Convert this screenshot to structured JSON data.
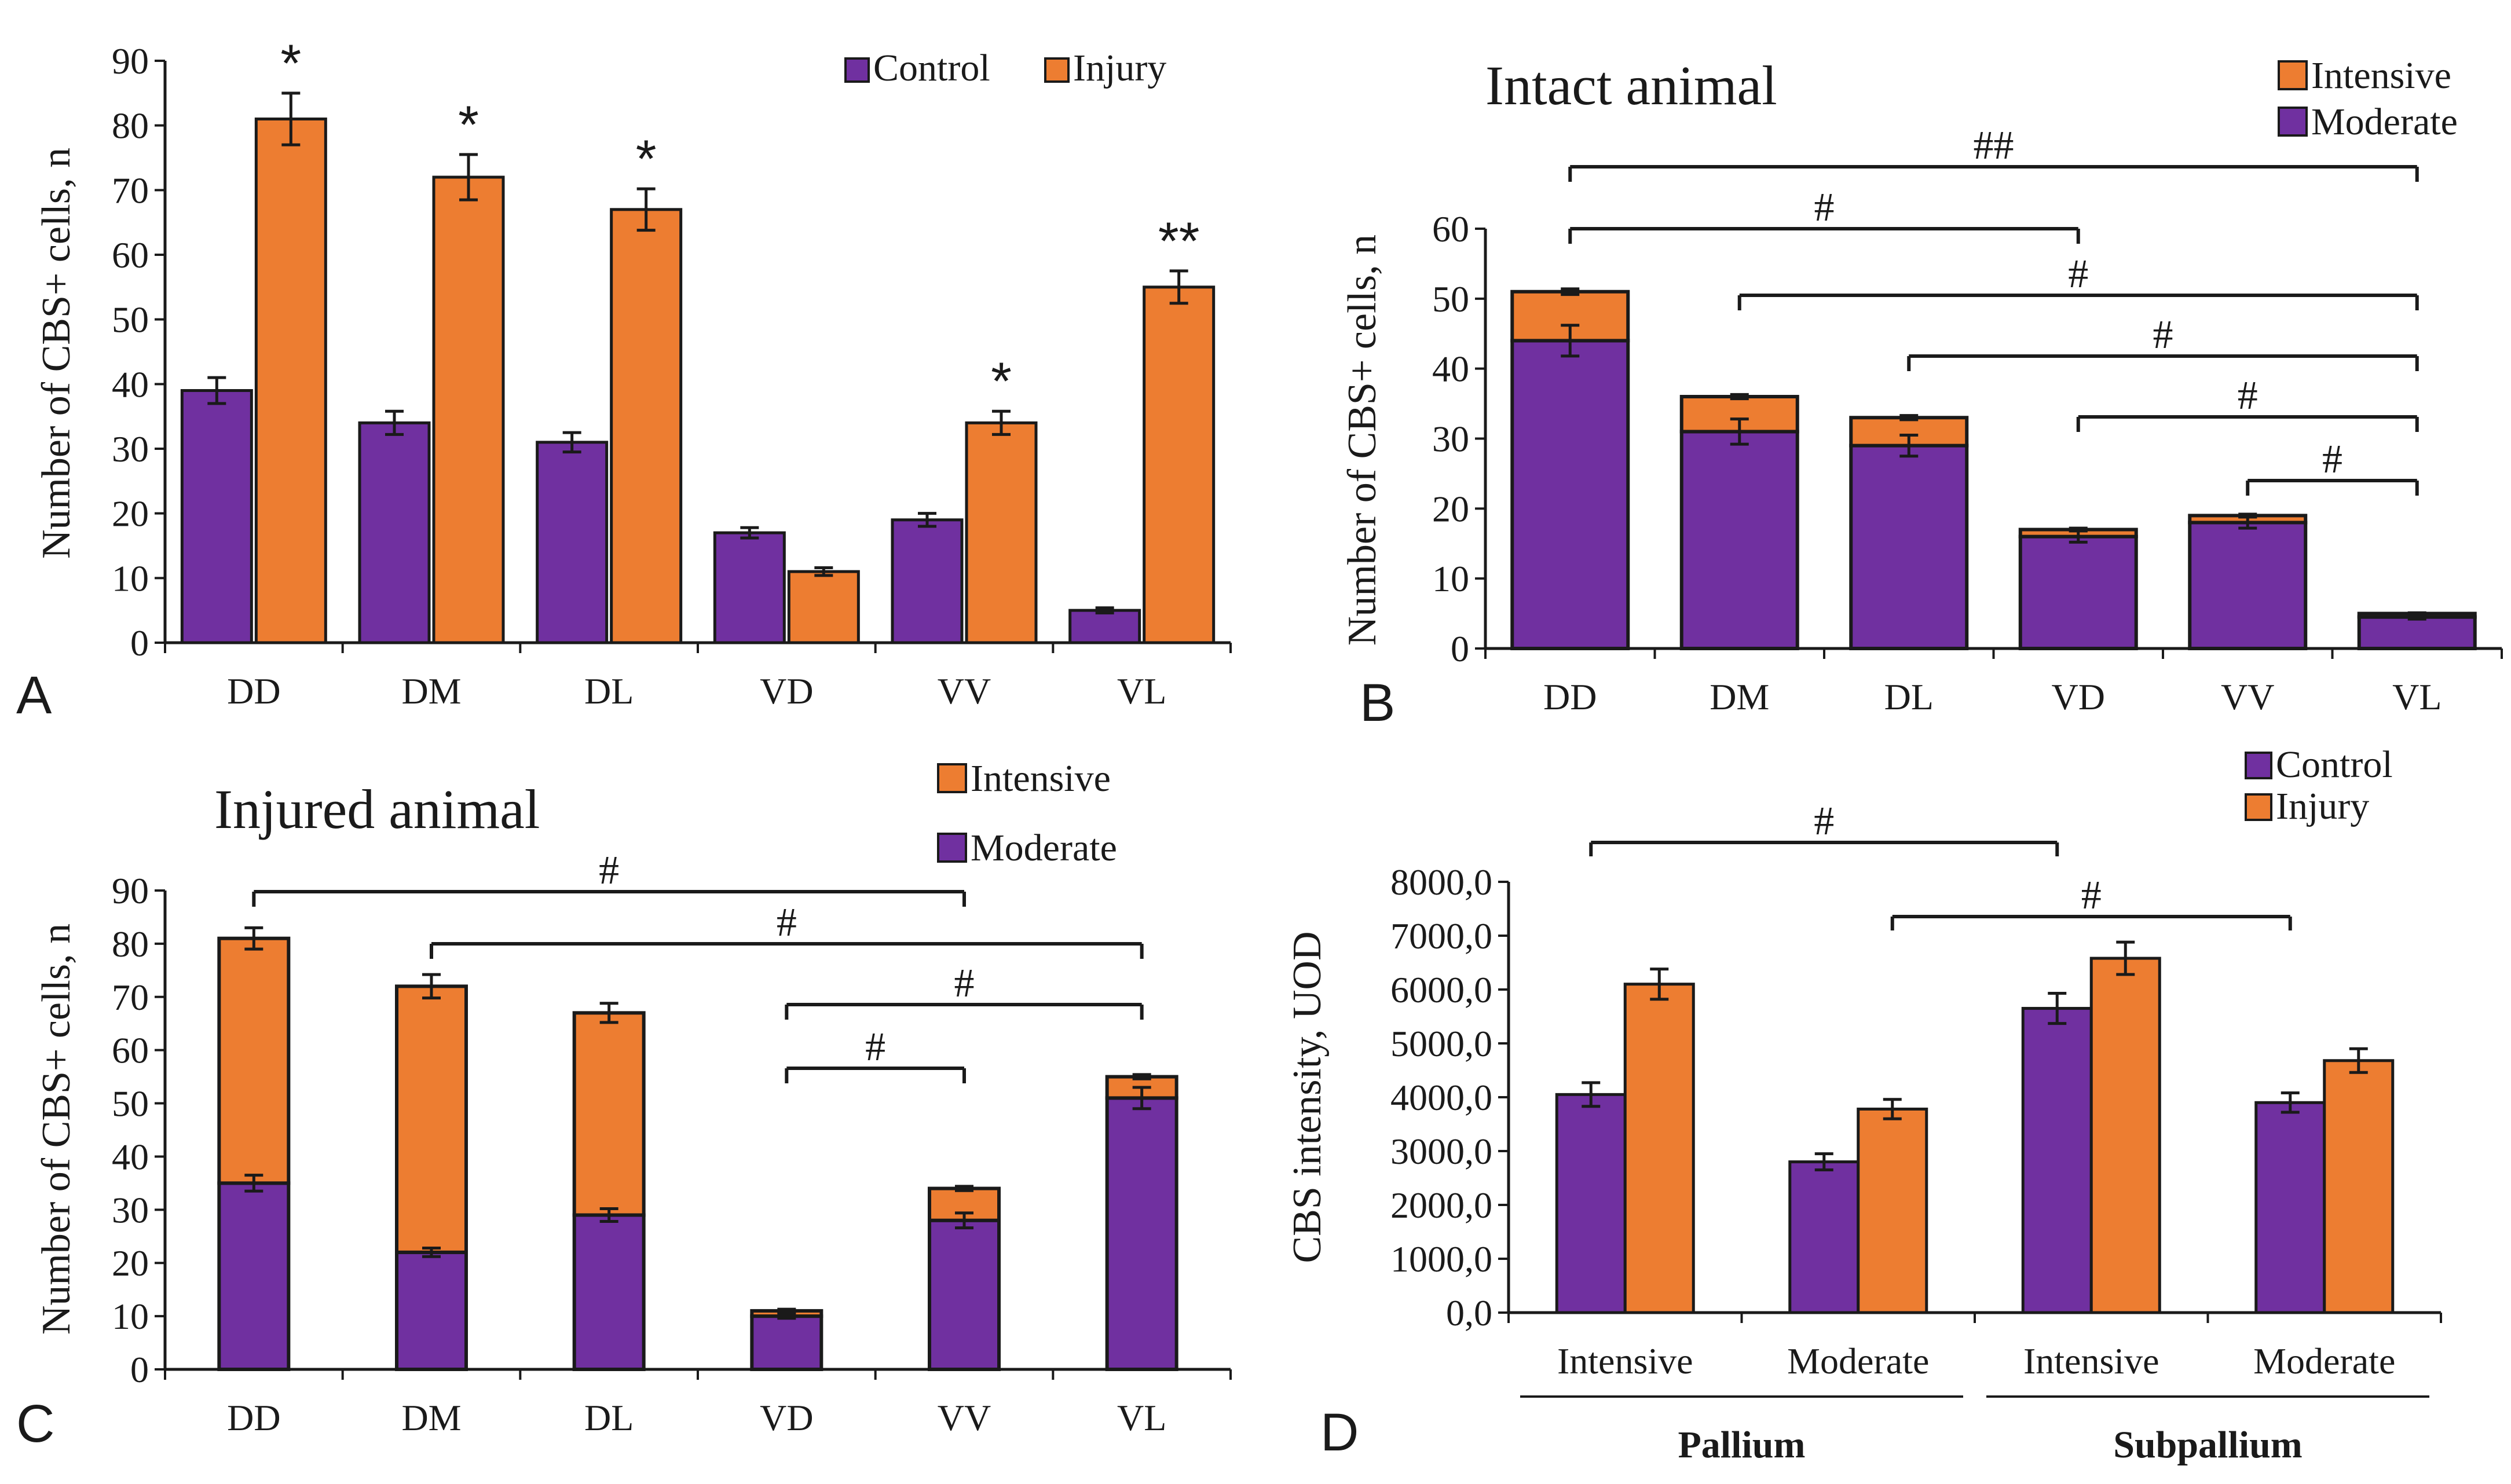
{
  "colors": {
    "purple": "#7030A0",
    "orange": "#ED7D31",
    "axis": "#1a1a1a"
  },
  "chart_data": [
    {
      "panel": "A",
      "type": "bar",
      "title": "",
      "ylabel": "Number of CBS+ cells, n",
      "xlabel": "",
      "ylim": [
        0,
        90
      ],
      "yticks": [
        "0",
        "10",
        "20",
        "30",
        "40",
        "50",
        "60",
        "70",
        "80",
        "90"
      ],
      "categories": [
        "DD",
        "DM",
        "DL",
        "VD",
        "VV",
        "VL"
      ],
      "legend": [
        "Control",
        "Injury"
      ],
      "series": [
        {
          "name": "Control",
          "color": "#7030A0",
          "values": [
            39,
            34,
            31,
            17,
            19,
            5
          ],
          "errors": [
            2,
            1.8,
            1.5,
            0.8,
            1,
            0.4
          ]
        },
        {
          "name": "Injury",
          "color": "#ED7D31",
          "values": [
            81,
            72,
            67,
            11,
            34,
            55
          ],
          "errors": [
            4,
            3.5,
            3.2,
            0.6,
            1.8,
            2.5
          ]
        }
      ],
      "annotations": [
        "*",
        "*",
        "*",
        "",
        "*",
        "**"
      ]
    },
    {
      "panel": "B",
      "type": "bar",
      "stacked": true,
      "title": "Intact animal",
      "ylabel": "Number of CBS+ cells, n",
      "ylim": [
        0,
        60
      ],
      "yticks": [
        "0",
        "10",
        "20",
        "30",
        "40",
        "50",
        "60"
      ],
      "categories": [
        "DD",
        "DM",
        "DL",
        "VD",
        "VV",
        "VL"
      ],
      "legend": [
        "Intensive",
        "Moderate"
      ],
      "series": [
        {
          "name": "Moderate",
          "color": "#7030A0",
          "values": [
            44,
            31,
            29,
            16,
            18,
            4.5
          ],
          "errors": [
            2.2,
            1.8,
            1.5,
            0.8,
            0.8,
            0.3
          ]
        },
        {
          "name": "Intensive",
          "color": "#ED7D31",
          "values": [
            7,
            5,
            4,
            1,
            1,
            0.5
          ],
          "errors": [
            0.4,
            0.3,
            0.3,
            0.2,
            0.2,
            0.1
          ]
        }
      ],
      "brackets": [
        {
          "from": "DD",
          "to": "VL",
          "label": "##"
        },
        {
          "from": "DD",
          "to": "VD",
          "label": "#"
        },
        {
          "from": "DM",
          "to": "VL",
          "label": "#"
        },
        {
          "from": "DL",
          "to": "VL",
          "label": "#"
        },
        {
          "from": "VD",
          "to": "VL",
          "label": "#"
        },
        {
          "from": "VV",
          "to": "VL",
          "label": "#"
        }
      ]
    },
    {
      "panel": "C",
      "type": "bar",
      "stacked": true,
      "title": "Injured animal",
      "ylabel": "Number of CBS+ cells, n",
      "ylim": [
        0,
        90
      ],
      "yticks": [
        "0",
        "10",
        "20",
        "30",
        "40",
        "50",
        "60",
        "70",
        "80",
        "90"
      ],
      "categories": [
        "DD",
        "DM",
        "DL",
        "VD",
        "VV",
        "VL"
      ],
      "legend": [
        "Intensive",
        "Moderate"
      ],
      "series": [
        {
          "name": "Moderate",
          "color": "#7030A0",
          "values": [
            35,
            22,
            29,
            10,
            28,
            51
          ],
          "errors": [
            1.5,
            0.8,
            1.2,
            0.4,
            1.4,
            2
          ]
        },
        {
          "name": "Intensive",
          "color": "#ED7D31",
          "values": [
            46,
            50,
            38,
            1,
            6,
            4
          ],
          "errors": [
            2,
            2.2,
            1.8,
            0.3,
            0.4,
            0.4
          ]
        }
      ],
      "brackets": [
        {
          "from": "DD",
          "to": "VV",
          "label": "#"
        },
        {
          "from": "DM",
          "to": "VL",
          "label": "#"
        },
        {
          "from": "VD",
          "to": "VL",
          "label": "#"
        },
        {
          "from": "VD",
          "to": "VV",
          "label": "#"
        }
      ]
    },
    {
      "panel": "D",
      "type": "bar",
      "title": "",
      "ylabel": "CBS intensity, UOD",
      "ylim": [
        0,
        8000
      ],
      "yticks": [
        "0,0",
        "1000,0",
        "2000,0",
        "3000,0",
        "4000,0",
        "5000,0",
        "6000,0",
        "7000,0",
        "8000,0"
      ],
      "categories": [
        "Intensive",
        "Moderate",
        "Intensive",
        "Moderate"
      ],
      "groups": [
        "Pallium",
        "Subpallium"
      ],
      "legend": [
        "Control",
        "Injury"
      ],
      "series": [
        {
          "name": "Control",
          "color": "#7030A0",
          "values": [
            4050,
            2800,
            5650,
            3900
          ],
          "errors": [
            220,
            150,
            280,
            180
          ]
        },
        {
          "name": "Injury",
          "color": "#ED7D31",
          "values": [
            6100,
            3780,
            6580,
            4680
          ],
          "errors": [
            280,
            180,
            300,
            220
          ]
        }
      ],
      "brackets": [
        {
          "from": 0,
          "to": 2,
          "label": "#"
        },
        {
          "from": 1,
          "to": 3,
          "label": "#"
        }
      ]
    }
  ]
}
